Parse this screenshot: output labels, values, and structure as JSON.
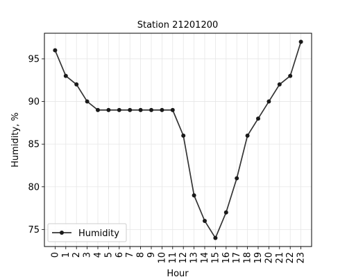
{
  "chart_data": {
    "type": "line",
    "title": "Station 21201200",
    "xlabel": "Hour",
    "ylabel": "Humidity, %",
    "x": [
      0,
      1,
      2,
      3,
      4,
      5,
      6,
      7,
      8,
      9,
      10,
      11,
      12,
      13,
      14,
      15,
      16,
      17,
      18,
      19,
      20,
      21,
      22,
      23
    ],
    "series": [
      {
        "name": "Humidity",
        "values": [
          96,
          93,
          92,
          90,
          89,
          89,
          89,
          89,
          89,
          89,
          89,
          89,
          86,
          79,
          76,
          74,
          77,
          81,
          86,
          88,
          90,
          92,
          93,
          97
        ]
      }
    ],
    "xlim": [
      -1,
      24
    ],
    "ylim": [
      73,
      98
    ],
    "yticks": [
      75,
      80,
      85,
      90,
      95
    ],
    "grid": true,
    "legend_position": "lower-left",
    "line_color": "#333333",
    "marker_color": "#1a1a1a"
  }
}
